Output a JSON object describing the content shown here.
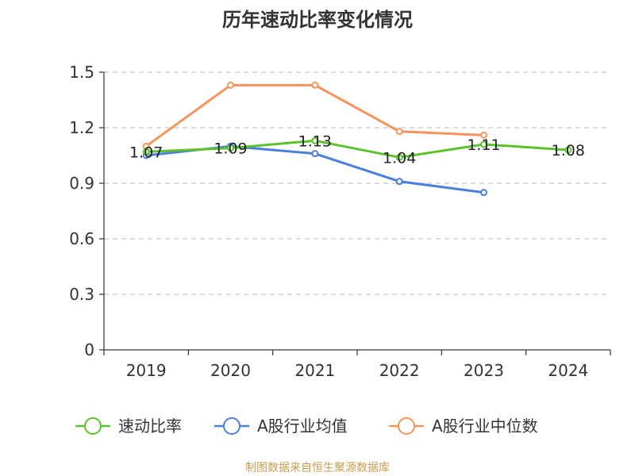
{
  "colors": {
    "series": [
      "#5cc22a",
      "#4a7fdc",
      "#f7935a"
    ],
    "axis": "#333333",
    "grid": "#c8c8c8",
    "source": "#c8a050"
  },
  "source_text": "制图数据来自恒生聚源数据库",
  "chart_data": {
    "type": "line",
    "title": "历年速动比率变化情况",
    "xlabel": "",
    "ylabel": "",
    "categories": [
      "2019",
      "2020",
      "2021",
      "2022",
      "2023",
      "2024"
    ],
    "ylim": [
      0,
      1.5
    ],
    "yticks": [
      "0",
      "0.3",
      "0.6",
      "0.9",
      "1.2",
      "1.5"
    ],
    "grid": true,
    "legend_position": "bottom",
    "series": [
      {
        "name": "速动比率",
        "values": [
          1.07,
          1.09,
          1.13,
          1.04,
          1.11,
          1.08
        ],
        "labels": [
          "1.07",
          "1.09",
          "1.13",
          "1.04",
          "1.11",
          "1.08"
        ]
      },
      {
        "name": "A股行业均值",
        "values": [
          1.05,
          1.1,
          1.06,
          0.91,
          0.85,
          null
        ]
      },
      {
        "name": "A股行业中位数",
        "values": [
          1.1,
          1.43,
          1.43,
          1.18,
          1.16,
          null
        ]
      }
    ]
  }
}
